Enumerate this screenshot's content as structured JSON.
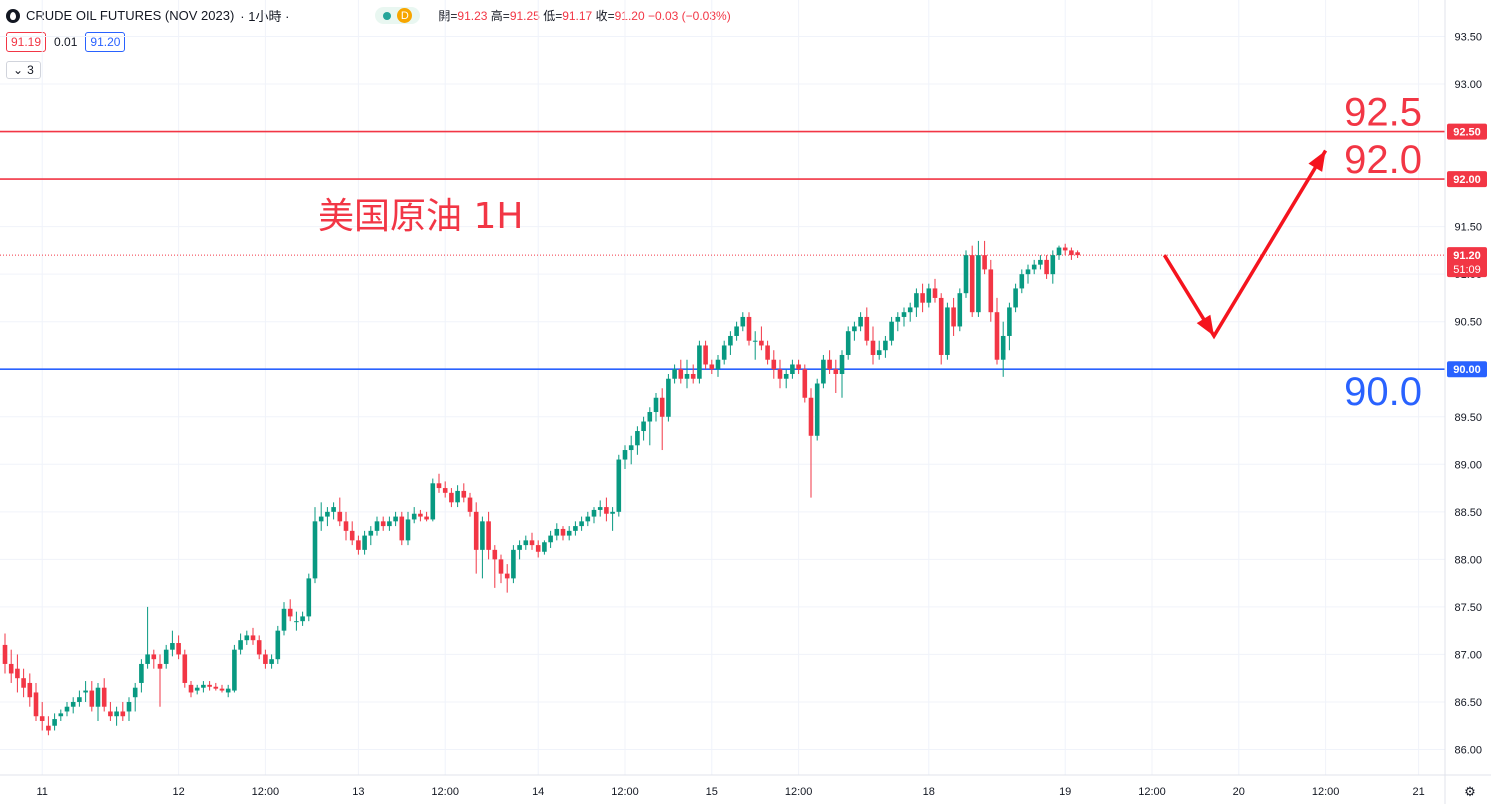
{
  "legend": {
    "symbol_title": "CRUDE OIL FUTURES (NOV 2023)",
    "interval": "· 1小時 ·",
    "status_letter": "D",
    "open_label": "開=",
    "open_value": "91.23",
    "high_label": "高=",
    "high_value": "91.25",
    "low_label": "低=",
    "low_value": "91.17",
    "close_label": "收=",
    "close_value": "91.20",
    "change": "−0.03 (−0.03%)"
  },
  "quote": {
    "bid": "91.19",
    "spread": "0.01",
    "ask": "91.20"
  },
  "indicators_toggle": {
    "count": "3",
    "icon": "chevron-down-icon"
  },
  "colors": {
    "up": "#089981",
    "down": "#f23645",
    "resistance": "#f23645",
    "support": "#2962ff",
    "arrow": "#f5141e",
    "title": "#f23645"
  },
  "chart_data": {
    "type": "candlestick",
    "title": "美国原油 1H",
    "ylim": [
      85.8,
      93.75
    ],
    "y_ticks": [
      "93.50",
      "93.00",
      "92.50",
      "92.00",
      "91.50",
      "91.00",
      "90.50",
      "90.00",
      "89.50",
      "89.00",
      "88.50",
      "88.00",
      "87.50",
      "87.00",
      "86.50",
      "86.00"
    ],
    "x_ticks": [
      "11",
      "12",
      "12:00",
      "13",
      "12:00",
      "14",
      "12:00",
      "15",
      "12:00",
      "18",
      "19",
      "12:00",
      "20",
      "12:00",
      "21"
    ],
    "x_tick_index": [
      6,
      28,
      42,
      57,
      71,
      86,
      100,
      114,
      128,
      149,
      171,
      185,
      199,
      213,
      228
    ],
    "x_range": [
      0,
      240
    ],
    "horizontal_lines": [
      {
        "price": 92.5,
        "label": "92.5",
        "axis_label": "92.50",
        "role": "resistance"
      },
      {
        "price": 92.0,
        "label": "92.0",
        "axis_label": "92.00",
        "role": "resistance"
      },
      {
        "price": 90.0,
        "label": "90.0",
        "axis_label": "90.00",
        "role": "support"
      }
    ],
    "last_price": {
      "value": 91.2,
      "label": "91.20",
      "countdown": "51:09"
    },
    "projection_arrow": [
      [
        187,
        91.2
      ],
      [
        195,
        90.35
      ],
      [
        213,
        92.3
      ]
    ],
    "ohlc": [
      [
        87.1,
        87.22,
        86.8,
        86.9
      ],
      [
        86.9,
        87.05,
        86.7,
        86.8
      ],
      [
        86.85,
        87.0,
        86.6,
        86.75
      ],
      [
        86.75,
        86.85,
        86.55,
        86.65
      ],
      [
        86.7,
        86.8,
        86.45,
        86.55
      ],
      [
        86.6,
        86.7,
        86.3,
        86.35
      ],
      [
        86.35,
        86.5,
        86.2,
        86.3
      ],
      [
        86.25,
        86.35,
        86.15,
        86.2
      ],
      [
        86.25,
        86.38,
        86.2,
        86.32
      ],
      [
        86.35,
        86.42,
        86.3,
        86.38
      ],
      [
        86.4,
        86.5,
        86.35,
        86.45
      ],
      [
        86.45,
        86.55,
        86.38,
        86.5
      ],
      [
        86.5,
        86.62,
        86.45,
        86.55
      ],
      [
        86.6,
        86.72,
        86.5,
        86.62
      ],
      [
        86.62,
        86.72,
        86.4,
        86.45
      ],
      [
        86.45,
        86.7,
        86.3,
        86.65
      ],
      [
        86.65,
        86.75,
        86.4,
        86.45
      ],
      [
        86.4,
        86.5,
        86.3,
        86.35
      ],
      [
        86.35,
        86.45,
        86.25,
        86.4
      ],
      [
        86.4,
        86.5,
        86.3,
        86.35
      ],
      [
        86.4,
        86.55,
        86.3,
        86.5
      ],
      [
        86.55,
        86.7,
        86.4,
        86.65
      ],
      [
        86.7,
        86.95,
        86.6,
        86.9
      ],
      [
        86.9,
        87.5,
        86.85,
        87.0
      ],
      [
        87.0,
        87.05,
        86.85,
        86.95
      ],
      [
        86.9,
        87.0,
        86.45,
        86.85
      ],
      [
        86.9,
        87.1,
        86.85,
        87.05
      ],
      [
        87.05,
        87.25,
        86.98,
        87.12
      ],
      [
        87.12,
        87.2,
        86.95,
        87.0
      ],
      [
        87.0,
        87.05,
        86.65,
        86.7
      ],
      [
        86.68,
        86.72,
        86.55,
        86.6
      ],
      [
        86.62,
        86.68,
        86.58,
        86.65
      ],
      [
        86.65,
        86.72,
        86.6,
        86.68
      ],
      [
        86.68,
        86.72,
        86.62,
        86.66
      ],
      [
        86.66,
        86.7,
        86.62,
        86.64
      ],
      [
        86.64,
        86.68,
        86.6,
        86.62
      ],
      [
        86.6,
        86.68,
        86.55,
        86.64
      ],
      [
        86.62,
        87.1,
        86.6,
        87.05
      ],
      [
        87.05,
        87.22,
        87.0,
        87.15
      ],
      [
        87.15,
        87.25,
        87.1,
        87.2
      ],
      [
        87.2,
        87.28,
        87.1,
        87.15
      ],
      [
        87.15,
        87.2,
        86.95,
        87.0
      ],
      [
        87.0,
        87.05,
        86.85,
        86.9
      ],
      [
        86.9,
        87.0,
        86.85,
        86.95
      ],
      [
        86.95,
        87.3,
        86.9,
        87.25
      ],
      [
        87.25,
        87.55,
        87.2,
        87.48
      ],
      [
        87.48,
        87.58,
        87.35,
        87.4
      ],
      [
        87.35,
        87.45,
        87.25,
        87.35
      ],
      [
        87.35,
        87.45,
        87.3,
        87.4
      ],
      [
        87.4,
        87.85,
        87.35,
        87.8
      ],
      [
        87.8,
        88.55,
        87.75,
        88.4
      ],
      [
        88.4,
        88.6,
        88.3,
        88.45
      ],
      [
        88.45,
        88.55,
        88.35,
        88.5
      ],
      [
        88.5,
        88.6,
        88.42,
        88.55
      ],
      [
        88.5,
        88.65,
        88.35,
        88.4
      ],
      [
        88.4,
        88.5,
        88.2,
        88.3
      ],
      [
        88.3,
        88.4,
        88.15,
        88.2
      ],
      [
        88.2,
        88.25,
        88.05,
        88.1
      ],
      [
        88.1,
        88.3,
        88.05,
        88.25
      ],
      [
        88.25,
        88.35,
        88.15,
        88.3
      ],
      [
        88.3,
        88.45,
        88.25,
        88.4
      ],
      [
        88.4,
        88.45,
        88.3,
        88.35
      ],
      [
        88.35,
        88.45,
        88.3,
        88.4
      ],
      [
        88.4,
        88.5,
        88.35,
        88.45
      ],
      [
        88.45,
        88.5,
        88.15,
        88.2
      ],
      [
        88.2,
        88.5,
        88.15,
        88.42
      ],
      [
        88.42,
        88.55,
        88.38,
        88.48
      ],
      [
        88.48,
        88.52,
        88.4,
        88.45
      ],
      [
        88.45,
        88.5,
        88.4,
        88.42
      ],
      [
        88.42,
        88.85,
        88.4,
        88.8
      ],
      [
        88.8,
        88.9,
        88.7,
        88.75
      ],
      [
        88.75,
        88.82,
        88.65,
        88.7
      ],
      [
        88.7,
        88.75,
        88.55,
        88.6
      ],
      [
        88.6,
        88.78,
        88.55,
        88.72
      ],
      [
        88.72,
        88.8,
        88.6,
        88.65
      ],
      [
        88.65,
        88.7,
        88.45,
        88.5
      ],
      [
        88.5,
        88.6,
        87.85,
        88.1
      ],
      [
        88.1,
        88.45,
        87.8,
        88.4
      ],
      [
        88.4,
        88.5,
        88.0,
        88.1
      ],
      [
        88.1,
        88.15,
        87.7,
        88.0
      ],
      [
        88.0,
        88.05,
        87.75,
        87.85
      ],
      [
        87.85,
        87.95,
        87.65,
        87.8
      ],
      [
        87.8,
        88.15,
        87.75,
        88.1
      ],
      [
        88.1,
        88.2,
        88.0,
        88.15
      ],
      [
        88.15,
        88.25,
        88.1,
        88.2
      ],
      [
        88.2,
        88.28,
        88.1,
        88.15
      ],
      [
        88.15,
        88.2,
        88.02,
        88.08
      ],
      [
        88.08,
        88.2,
        88.05,
        88.18
      ],
      [
        88.18,
        88.3,
        88.12,
        88.25
      ],
      [
        88.25,
        88.38,
        88.2,
        88.32
      ],
      [
        88.32,
        88.35,
        88.2,
        88.25
      ],
      [
        88.25,
        88.35,
        88.2,
        88.3
      ],
      [
        88.3,
        88.4,
        88.25,
        88.35
      ],
      [
        88.35,
        88.45,
        88.3,
        88.4
      ],
      [
        88.4,
        88.5,
        88.35,
        88.45
      ],
      [
        88.45,
        88.55,
        88.38,
        88.52
      ],
      [
        88.52,
        88.62,
        88.45,
        88.55
      ],
      [
        88.55,
        88.65,
        88.4,
        88.48
      ],
      [
        88.48,
        88.55,
        88.3,
        88.5
      ],
      [
        88.5,
        89.1,
        88.45,
        89.05
      ],
      [
        89.05,
        89.2,
        88.95,
        89.15
      ],
      [
        89.15,
        89.3,
        89.0,
        89.2
      ],
      [
        89.2,
        89.4,
        89.1,
        89.35
      ],
      [
        89.35,
        89.5,
        89.25,
        89.45
      ],
      [
        89.45,
        89.6,
        89.2,
        89.55
      ],
      [
        89.55,
        89.75,
        89.45,
        89.7
      ],
      [
        89.7,
        89.8,
        89.15,
        89.5
      ],
      [
        89.5,
        89.95,
        89.45,
        89.9
      ],
      [
        89.9,
        90.05,
        89.85,
        90.0
      ],
      [
        90.0,
        90.1,
        89.85,
        89.9
      ],
      [
        89.9,
        90.1,
        89.8,
        89.95
      ],
      [
        89.95,
        90.05,
        89.85,
        89.9
      ],
      [
        89.9,
        90.3,
        89.85,
        90.25
      ],
      [
        90.25,
        90.3,
        90.0,
        90.05
      ],
      [
        90.05,
        90.1,
        89.95,
        90.0
      ],
      [
        90.0,
        90.15,
        89.92,
        90.1
      ],
      [
        90.1,
        90.3,
        90.05,
        90.25
      ],
      [
        90.25,
        90.4,
        90.15,
        90.35
      ],
      [
        90.35,
        90.5,
        90.3,
        90.45
      ],
      [
        90.45,
        90.6,
        90.4,
        90.55
      ],
      [
        90.55,
        90.6,
        90.25,
        90.3
      ],
      [
        90.3,
        90.4,
        90.1,
        90.3
      ],
      [
        90.3,
        90.45,
        90.2,
        90.25
      ],
      [
        90.25,
        90.3,
        90.05,
        90.1
      ],
      [
        90.1,
        90.2,
        89.9,
        90.0
      ],
      [
        90.0,
        90.1,
        89.8,
        89.9
      ],
      [
        89.9,
        90.0,
        89.8,
        89.95
      ],
      [
        89.95,
        90.1,
        89.9,
        90.05
      ],
      [
        90.05,
        90.1,
        89.95,
        90.0
      ],
      [
        90.0,
        90.05,
        89.65,
        89.7
      ],
      [
        89.7,
        89.8,
        88.65,
        89.3
      ],
      [
        89.3,
        89.9,
        89.25,
        89.85
      ],
      [
        89.85,
        90.15,
        89.8,
        90.1
      ],
      [
        90.1,
        90.2,
        89.95,
        90.0
      ],
      [
        90.0,
        90.1,
        89.75,
        89.95
      ],
      [
        89.95,
        90.2,
        89.7,
        90.15
      ],
      [
        90.15,
        90.45,
        90.1,
        90.4
      ],
      [
        90.4,
        90.5,
        90.3,
        90.45
      ],
      [
        90.45,
        90.6,
        90.4,
        90.55
      ],
      [
        90.55,
        90.65,
        90.25,
        90.3
      ],
      [
        90.3,
        90.45,
        90.05,
        90.15
      ],
      [
        90.15,
        90.3,
        90.1,
        90.2
      ],
      [
        90.2,
        90.35,
        90.12,
        90.3
      ],
      [
        90.3,
        90.55,
        90.25,
        90.5
      ],
      [
        90.5,
        90.6,
        90.4,
        90.55
      ],
      [
        90.55,
        90.65,
        90.45,
        90.6
      ],
      [
        90.6,
        90.7,
        90.5,
        90.65
      ],
      [
        90.65,
        90.85,
        90.55,
        90.8
      ],
      [
        90.8,
        90.9,
        90.6,
        90.7
      ],
      [
        90.7,
        90.9,
        90.65,
        90.85
      ],
      [
        90.85,
        90.95,
        90.7,
        90.75
      ],
      [
        90.75,
        90.8,
        90.05,
        90.15
      ],
      [
        90.15,
        90.7,
        90.1,
        90.65
      ],
      [
        90.65,
        90.75,
        90.35,
        90.45
      ],
      [
        90.45,
        90.85,
        90.4,
        90.8
      ],
      [
        90.8,
        91.25,
        90.75,
        91.2
      ],
      [
        91.2,
        91.3,
        90.55,
        90.6
      ],
      [
        90.6,
        91.35,
        90.55,
        91.2
      ],
      [
        91.2,
        91.35,
        91.0,
        91.05
      ],
      [
        91.05,
        91.15,
        90.5,
        90.6
      ],
      [
        90.6,
        90.75,
        90.05,
        90.1
      ],
      [
        90.1,
        90.5,
        89.92,
        90.35
      ],
      [
        90.35,
        90.7,
        90.2,
        90.65
      ],
      [
        90.65,
        90.9,
        90.6,
        90.85
      ],
      [
        90.85,
        91.05,
        90.8,
        91.0
      ],
      [
        91.0,
        91.1,
        90.9,
        91.05
      ],
      [
        91.05,
        91.15,
        91.0,
        91.1
      ],
      [
        91.1,
        91.2,
        91.05,
        91.15
      ],
      [
        91.15,
        91.2,
        90.95,
        91.0
      ],
      [
        91.0,
        91.25,
        90.9,
        91.2
      ],
      [
        91.2,
        91.3,
        91.15,
        91.28
      ],
      [
        91.28,
        91.32,
        91.2,
        91.25
      ],
      [
        91.25,
        91.28,
        91.15,
        91.2
      ],
      [
        91.23,
        91.25,
        91.17,
        91.2
      ]
    ]
  }
}
